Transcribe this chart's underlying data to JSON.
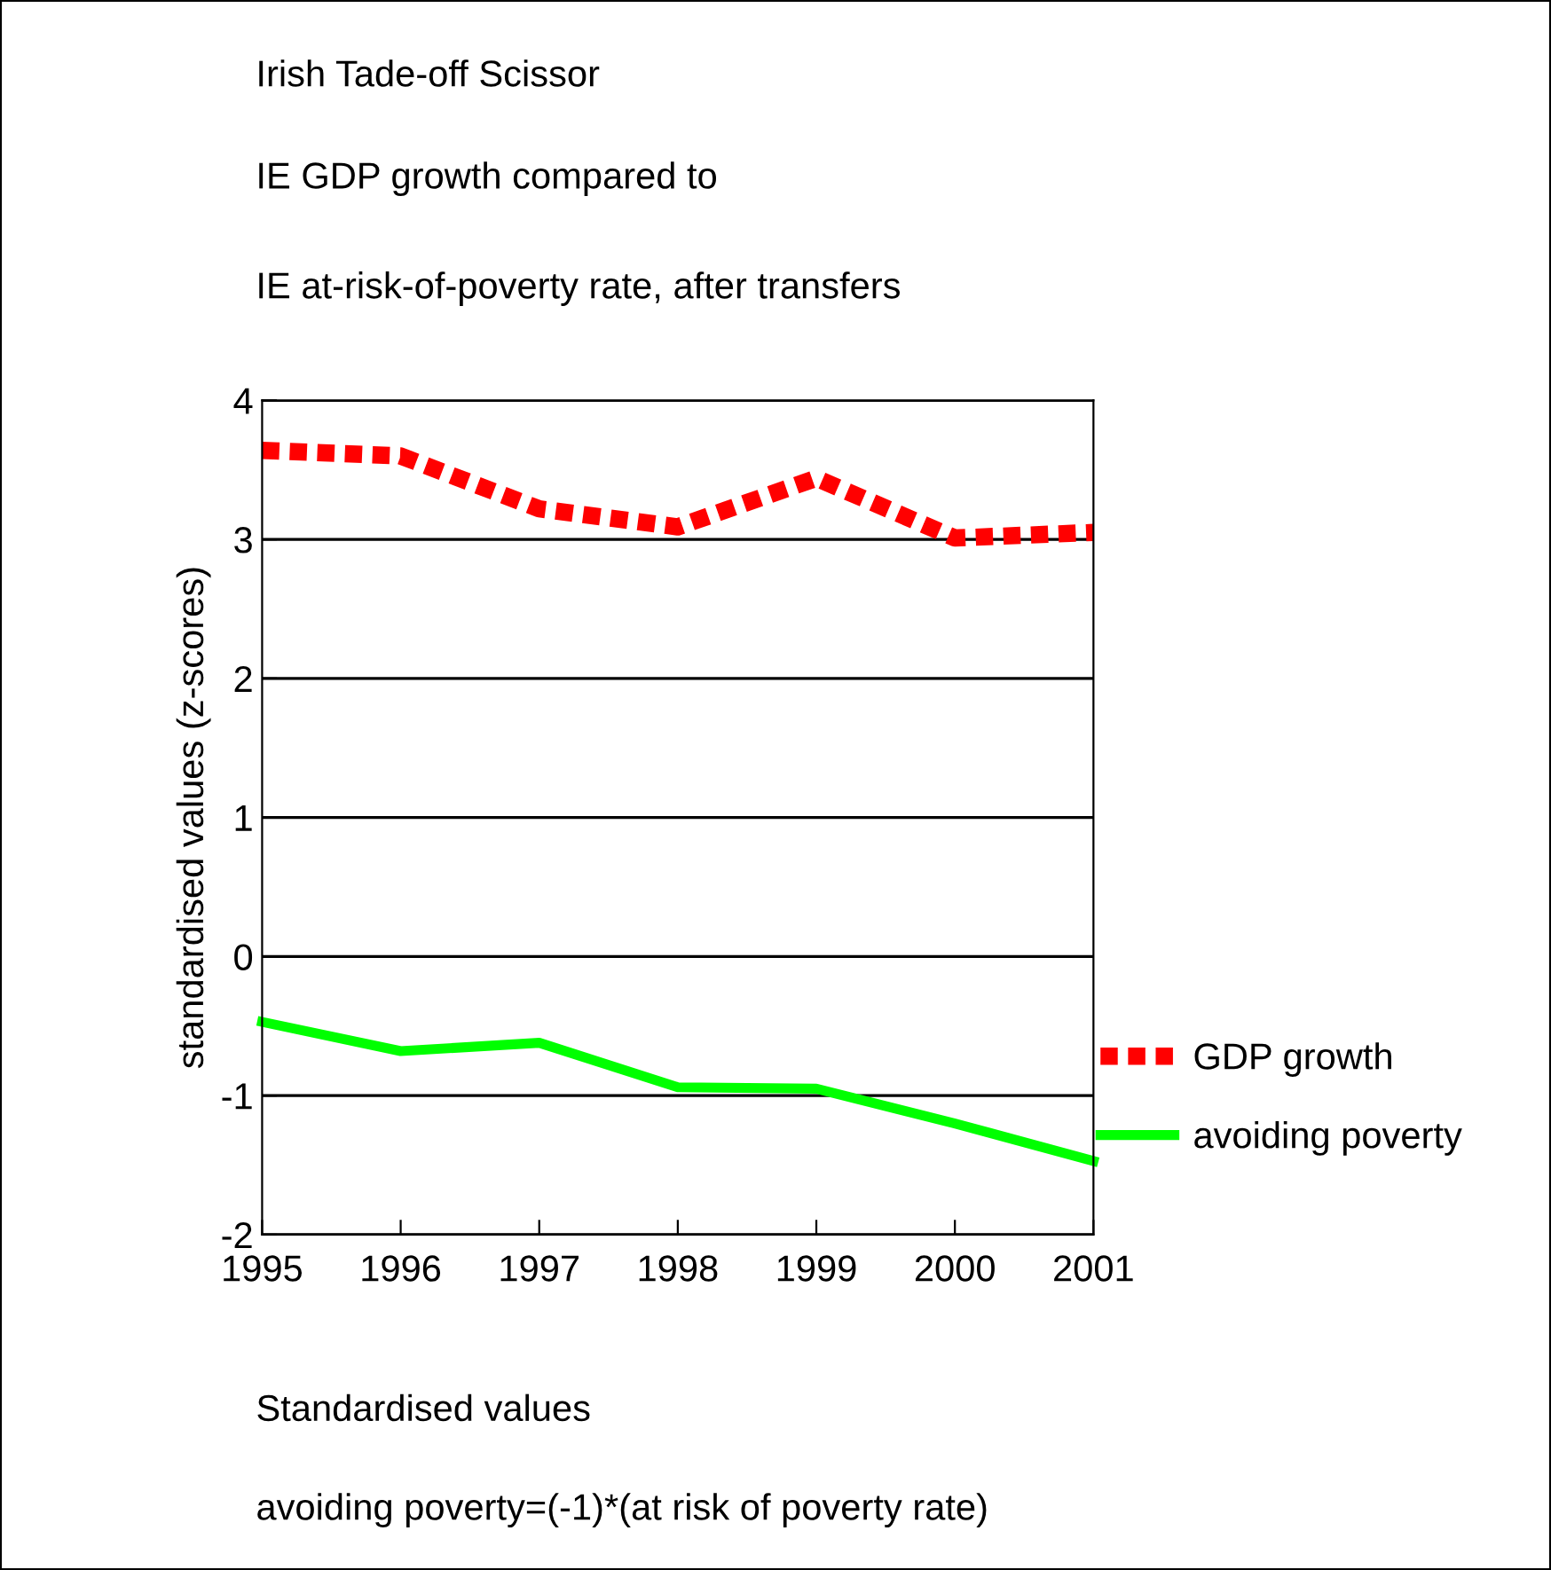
{
  "chart_data": {
    "type": "line",
    "title": "Irish Tade-off Scissor",
    "subtitle": "IE GDP growth compared to",
    "ylabel": "standardised values (z-scores)",
    "annotations": [
      "IE at-risk-of-poverty rate, after transfers",
      "Standardised values",
      "avoiding poverty=(-1)*(at risk of poverty rate)"
    ],
    "x": [
      1995,
      1996,
      1997,
      1998,
      1999,
      2000,
      2001
    ],
    "series": [
      {
        "name": "GDP growth",
        "color": "#ff0000",
        "line_style": "dotted",
        "values": [
          3.64,
          3.6,
          3.22,
          3.09,
          3.44,
          3.01,
          3.05
        ]
      },
      {
        "name": "avoiding poverty",
        "color": "#00ff00",
        "line_style": "solid",
        "values": [
          -0.47,
          -0.68,
          -0.62,
          -0.94,
          -0.95,
          -1.2,
          -1.47
        ]
      }
    ],
    "xlim": [
      1995,
      2001
    ],
    "xticks": [
      1995,
      1996,
      1997,
      1998,
      1999,
      2000,
      2001
    ],
    "ylim": [
      -2,
      4
    ],
    "yticks": [
      -2,
      -1,
      0,
      1,
      2,
      3,
      4
    ],
    "grid": "y",
    "legend": "right",
    "marker": "none"
  }
}
